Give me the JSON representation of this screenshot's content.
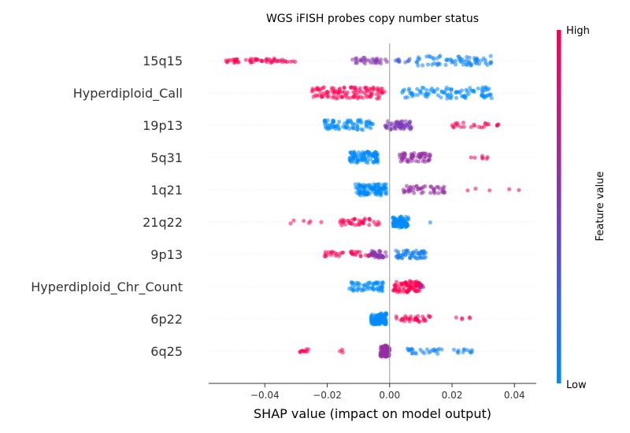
{
  "chart_data": {
    "type": "scatter",
    "title": "WGS iFISH probes copy number status",
    "xlabel": "SHAP value (impact on model output)",
    "xlim": [
      -0.058,
      0.047
    ],
    "xticks": [
      -0.04,
      -0.02,
      0.0,
      0.02,
      0.04
    ],
    "xtick_labels": [
      "−0.04",
      "−0.02",
      "0.00",
      "0.02",
      "0.04"
    ],
    "colorbar": {
      "label": "Feature value",
      "high_label": "High",
      "low_label": "Low",
      "low_color": "#008bfb",
      "mid_color": "#7c3ab8",
      "high_color": "#ff0052"
    },
    "grid": false,
    "features": [
      {
        "name": "15q15",
        "clusters": [
          {
            "x": [
              -0.053,
              -0.048
            ],
            "value": 1.0,
            "n": 16
          },
          {
            "x": [
              -0.047,
              -0.041
            ],
            "value": 0.97,
            "n": 14
          },
          {
            "x": [
              -0.041,
              -0.035
            ],
            "value": 0.95,
            "n": 18
          },
          {
            "x": [
              -0.035,
              -0.028
            ],
            "value": 0.92,
            "n": 8
          },
          {
            "x": [
              -0.012,
              -0.0005
            ],
            "value": 0.55,
            "n": 32
          },
          {
            "x": [
              0.001,
              0.008
            ],
            "value": 0.25,
            "n": 10
          },
          {
            "x": [
              0.008,
              0.033
            ],
            "value": 0.05,
            "n": 70
          }
        ]
      },
      {
        "name": "Hyperdiploid_Call",
        "clusters": [
          {
            "x": [
              -0.025,
              -0.0015
            ],
            "value": 1.0,
            "n": 110
          },
          {
            "x": [
              0.004,
              0.033
            ],
            "value": 0.0,
            "n": 95
          }
        ]
      },
      {
        "name": "19p13",
        "clusters": [
          {
            "x": [
              -0.021,
              -0.005
            ],
            "value": 0.0,
            "n": 75
          },
          {
            "x": [
              -0.0015,
              0.007
            ],
            "value": 0.5,
            "n": 60
          },
          {
            "x": [
              0.02,
              0.036
            ],
            "value": 0.97,
            "n": 24
          }
        ]
      },
      {
        "name": "5q31",
        "clusters": [
          {
            "x": [
              -0.013,
              -0.0035
            ],
            "value": 0.0,
            "n": 95
          },
          {
            "x": [
              0.003,
              0.013
            ],
            "value": 0.6,
            "n": 60
          },
          {
            "x": [
              0.022,
              0.033
            ],
            "value": 0.92,
            "n": 7
          }
        ]
      },
      {
        "name": "1q21",
        "clusters": [
          {
            "x": [
              -0.011,
              -0.001
            ],
            "value": 0.0,
            "n": 110
          },
          {
            "x": [
              0.004,
              0.018
            ],
            "value": 0.6,
            "n": 45
          },
          {
            "x": [
              0.022,
              0.042
            ],
            "value": 0.93,
            "n": 5
          }
        ]
      },
      {
        "name": "21q22",
        "clusters": [
          {
            "x": [
              -0.036,
              -0.021
            ],
            "value": 1.0,
            "n": 6
          },
          {
            "x": [
              -0.016,
              -0.003
            ],
            "value": 0.97,
            "n": 40
          },
          {
            "x": [
              0.001,
              0.006
            ],
            "value": 0.0,
            "n": 95
          },
          {
            "x": [
              0.013,
              0.014
            ],
            "value": 0.08,
            "n": 1
          }
        ]
      },
      {
        "name": "9p13",
        "clusters": [
          {
            "x": [
              -0.022,
              -0.009
            ],
            "value": 0.97,
            "n": 30
          },
          {
            "x": [
              -0.008,
              -0.006
            ],
            "value": 0.85,
            "n": 5
          },
          {
            "x": [
              -0.006,
              -0.001
            ],
            "value": 0.55,
            "n": 40
          },
          {
            "x": [
              0.002,
              0.012
            ],
            "value": 0.08,
            "n": 55
          }
        ]
      },
      {
        "name": "Hyperdiploid_Chr_Count",
        "clusters": [
          {
            "x": [
              -0.013,
              -0.002
            ],
            "value": 0.0,
            "n": 60
          },
          {
            "x": [
              0.001,
              0.01
            ],
            "value": 1.0,
            "n": 85
          },
          {
            "x": [
              0.01,
              0.011
            ],
            "value": 0.6,
            "n": 4
          }
        ]
      },
      {
        "name": "6p22",
        "clusters": [
          {
            "x": [
              -0.006,
              -0.001
            ],
            "value": 0.0,
            "n": 110
          },
          {
            "x": [
              0.002,
              0.013
            ],
            "value": 0.97,
            "n": 35
          },
          {
            "x": [
              0.021,
              0.026
            ],
            "value": 1.0,
            "n": 5
          }
        ]
      },
      {
        "name": "6q25",
        "clusters": [
          {
            "x": [
              -0.029,
              -0.025
            ],
            "value": 1.0,
            "n": 10
          },
          {
            "x": [
              -0.016,
              -0.014
            ],
            "value": 1.0,
            "n": 3
          },
          {
            "x": [
              -0.003,
              0.0
            ],
            "value": 0.6,
            "n": 90
          },
          {
            "x": [
              0.005,
              0.017
            ],
            "value": 0.05,
            "n": 25
          },
          {
            "x": [
              0.02,
              0.027
            ],
            "value": 0.05,
            "n": 12
          }
        ]
      }
    ]
  }
}
